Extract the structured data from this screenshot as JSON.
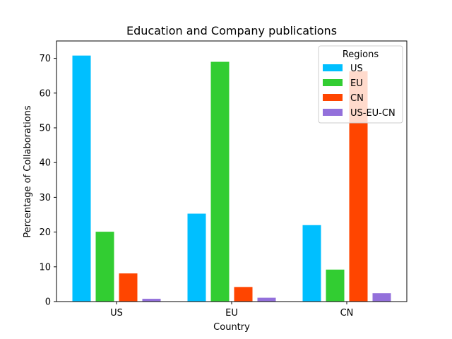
{
  "chart_data": {
    "type": "bar",
    "title": "Education and Company publications",
    "xlabel": "Country",
    "ylabel": "Percentage of Collaborations",
    "categories": [
      "US",
      "EU",
      "CN"
    ],
    "ylim": [
      0,
      75
    ],
    "yticks": [
      0,
      10,
      20,
      30,
      40,
      50,
      60,
      70
    ],
    "grid": false,
    "legend": {
      "title": "Regions",
      "placement": "top-right"
    },
    "series": [
      {
        "name": "US",
        "color": "#00BFFF",
        "values": [
          70.8,
          25.3,
          22.0
        ]
      },
      {
        "name": "EU",
        "color": "#32CD32",
        "values": [
          20.1,
          69.0,
          9.2
        ]
      },
      {
        "name": "CN",
        "color": "#FF4500",
        "values": [
          8.1,
          4.2,
          66.3
        ]
      },
      {
        "name": "US-EU-CN",
        "color": "#9370DB",
        "values": [
          0.8,
          1.1,
          2.4
        ]
      }
    ]
  }
}
